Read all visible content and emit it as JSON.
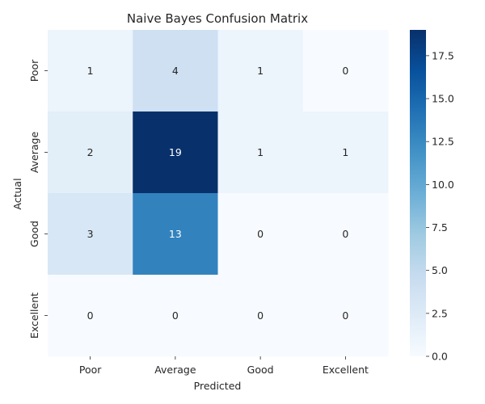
{
  "chart_data": {
    "type": "heatmap",
    "title": "Naive Bayes Confusion Matrix",
    "xlabel": "Predicted",
    "ylabel": "Actual",
    "x_categories": [
      "Poor",
      "Average",
      "Good",
      "Excellent"
    ],
    "y_categories": [
      "Poor",
      "Average",
      "Good",
      "Excellent"
    ],
    "values": [
      [
        1,
        4,
        1,
        0
      ],
      [
        2,
        19,
        1,
        1
      ],
      [
        3,
        13,
        0,
        0
      ],
      [
        0,
        0,
        0,
        0
      ]
    ],
    "colormap": "Blues",
    "vmin": 0,
    "vmax": 19,
    "colorbar_ticks": [
      0,
      2.5,
      5,
      7.5,
      10,
      12.5,
      15,
      17.5
    ],
    "colorbar_tick_labels": [
      "0.0",
      "2.5",
      "5.0",
      "7.5",
      "10.0",
      "12.5",
      "15.0",
      "17.5"
    ]
  }
}
